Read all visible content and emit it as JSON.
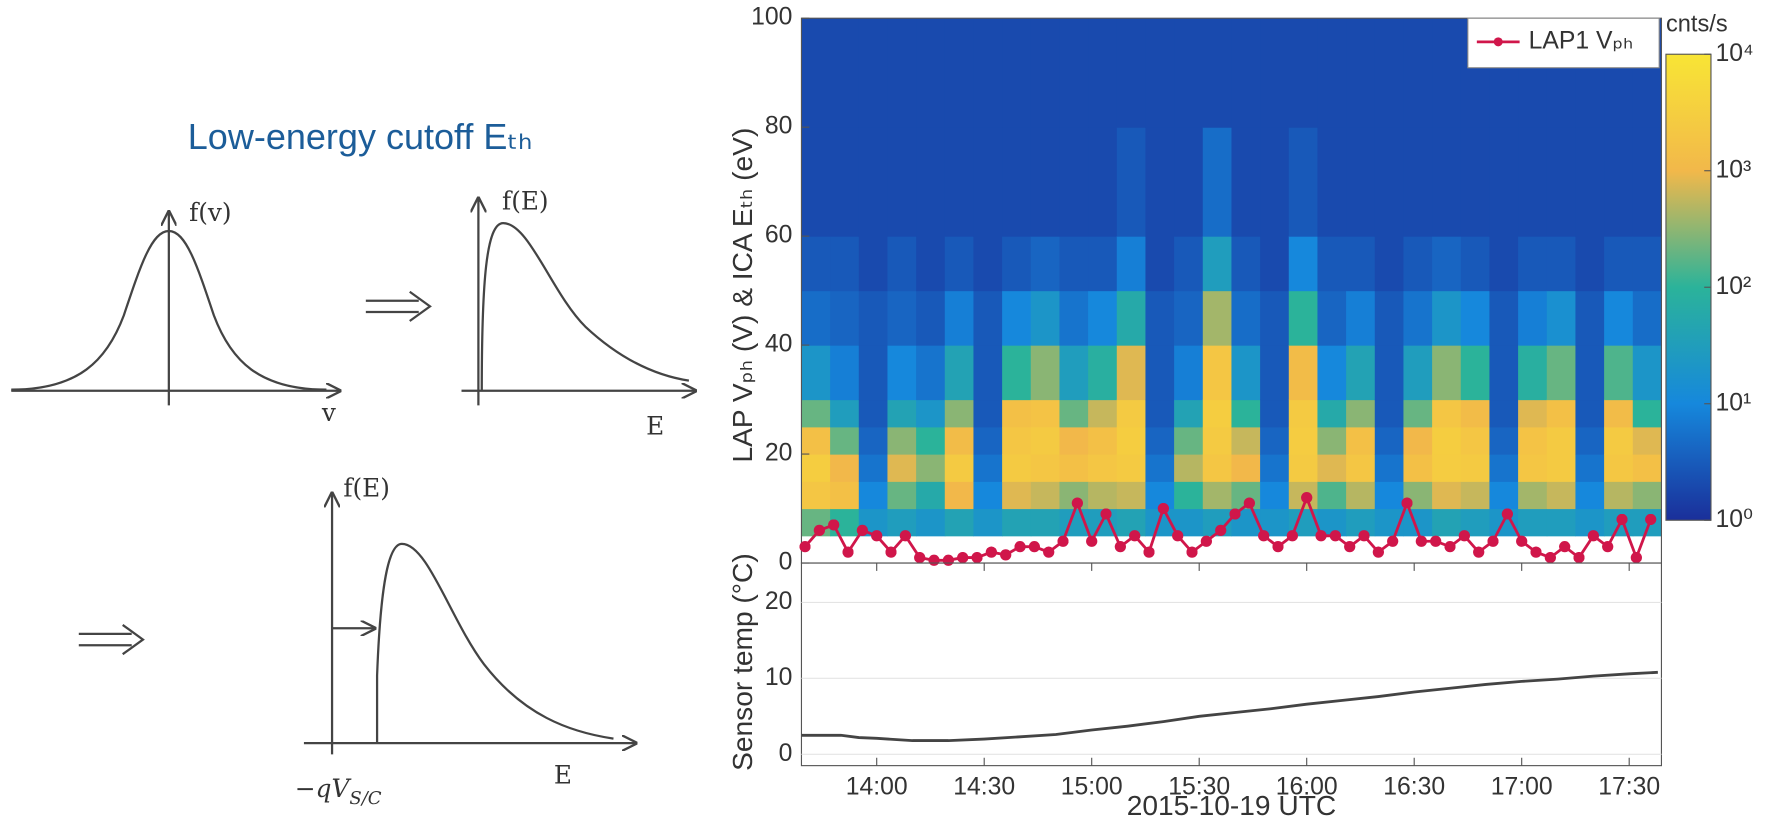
{
  "diagram": {
    "title": "Low-energy cutoff Eₜₕ",
    "panels": [
      {
        "ylabel": "f(v)",
        "xlabel": "v"
      },
      {
        "ylabel": "f(E)",
        "xlabel": "E"
      },
      {
        "ylabel": "f(E)",
        "xlabel": "E",
        "marker": "−qV",
        "marker_subscript": "S/C"
      }
    ]
  },
  "chart_data": [
    {
      "type": "heatmap",
      "ylabel": "LAP Vₚₕ (V) & ICA Eₜₕ (eV)",
      "xlim": [
        "13:39",
        "17:39"
      ],
      "ylim": [
        0,
        100
      ],
      "yticks": [
        0,
        20,
        40,
        60,
        80,
        100
      ],
      "time_bins": [
        "13:39",
        "13:47",
        "13:55",
        "14:03",
        "14:11",
        "14:19",
        "14:27",
        "14:35",
        "14:43",
        "14:51",
        "14:59",
        "15:07",
        "15:15",
        "15:23",
        "15:31",
        "15:39",
        "15:47",
        "15:55",
        "16:03",
        "16:11",
        "16:19",
        "16:27",
        "16:35",
        "16:43",
        "16:51",
        "16:59",
        "17:07",
        "17:15",
        "17:23",
        "17:31",
        "17:39"
      ],
      "energy_bins": [
        5,
        10,
        15,
        20,
        25,
        30,
        40,
        50,
        60,
        80,
        100
      ],
      "values": [
        [
          200,
          2000,
          3000,
          1500,
          200,
          20,
          5,
          3,
          2,
          2
        ],
        [
          100,
          1500,
          1000,
          200,
          30,
          8,
          4,
          3,
          2,
          2
        ],
        [
          20,
          10,
          6,
          4,
          3,
          3,
          3,
          2,
          2,
          2
        ],
        [
          30,
          200,
          800,
          300,
          40,
          10,
          4,
          3,
          2,
          2
        ],
        [
          20,
          60,
          300,
          100,
          20,
          6,
          3,
          2,
          2,
          2
        ],
        [
          40,
          1000,
          2500,
          1200,
          300,
          40,
          8,
          3,
          2,
          2
        ],
        [
          20,
          10,
          6,
          4,
          3,
          3,
          3,
          2,
          2,
          2
        ],
        [
          40,
          800,
          2500,
          2000,
          1500,
          100,
          10,
          3,
          2,
          2
        ],
        [
          40,
          600,
          2000,
          2500,
          1800,
          300,
          20,
          4,
          2,
          2
        ],
        [
          30,
          300,
          1500,
          1000,
          200,
          30,
          6,
          3,
          2,
          2
        ],
        [
          30,
          500,
          2000,
          1500,
          600,
          80,
          10,
          3,
          2,
          2
        ],
        [
          40,
          600,
          2500,
          3000,
          2500,
          800,
          60,
          8,
          3,
          2
        ],
        [
          20,
          10,
          6,
          4,
          3,
          3,
          3,
          2,
          2,
          2
        ],
        [
          20,
          100,
          500,
          200,
          40,
          8,
          4,
          3,
          2,
          2
        ],
        [
          30,
          400,
          2000,
          2500,
          3000,
          2000,
          400,
          30,
          5,
          2
        ],
        [
          20,
          200,
          1000,
          600,
          100,
          20,
          5,
          3,
          2,
          2
        ],
        [
          20,
          10,
          6,
          4,
          3,
          3,
          3,
          2,
          2,
          2
        ],
        [
          30,
          600,
          2500,
          2800,
          2500,
          1200,
          100,
          10,
          3,
          2
        ],
        [
          20,
          150,
          800,
          300,
          60,
          10,
          4,
          3,
          2,
          2
        ],
        [
          30,
          500,
          2000,
          1500,
          300,
          40,
          8,
          3,
          2,
          2
        ],
        [
          20,
          10,
          6,
          4,
          3,
          3,
          3,
          2,
          2,
          2
        ],
        [
          20,
          300,
          1500,
          1000,
          200,
          30,
          6,
          3,
          2,
          2
        ],
        [
          40,
          800,
          2800,
          3000,
          2000,
          300,
          20,
          4,
          2,
          2
        ],
        [
          30,
          600,
          2500,
          2000,
          1200,
          100,
          10,
          3,
          2,
          2
        ],
        [
          20,
          10,
          6,
          4,
          3,
          3,
          3,
          2,
          2,
          2
        ],
        [
          30,
          400,
          2000,
          1800,
          800,
          80,
          8,
          3,
          2,
          2
        ],
        [
          30,
          600,
          2500,
          2500,
          1500,
          200,
          15,
          3,
          2,
          2
        ],
        [
          20,
          10,
          6,
          4,
          3,
          3,
          3,
          2,
          2,
          2
        ],
        [
          30,
          500,
          2200,
          2500,
          1200,
          150,
          10,
          3,
          2,
          2
        ],
        [
          30,
          300,
          1500,
          800,
          100,
          20,
          5,
          3,
          2,
          2
        ]
      ],
      "colormap": [
        "#1a2f9a",
        "#1688dc",
        "#2bb39a",
        "#f2b84a",
        "#f8e535"
      ],
      "clim": [
        1,
        10000
      ],
      "clog": true,
      "colorbar_label": "cnts/s",
      "cticks": [
        {
          "value": 1,
          "label": "10⁰"
        },
        {
          "value": 10,
          "label": "10¹"
        },
        {
          "value": 100,
          "label": "10²"
        },
        {
          "value": 1000,
          "label": "10³"
        },
        {
          "value": 10000,
          "label": "10⁴"
        }
      ],
      "legend": "upper right",
      "series": [
        {
          "name": "LAP1 Vₚₕ",
          "color": "#d0164a",
          "x": [
            "13:40",
            "13:44",
            "13:48",
            "13:52",
            "13:56",
            "14:00",
            "14:04",
            "14:08",
            "14:12",
            "14:16",
            "14:20",
            "14:24",
            "14:28",
            "14:32",
            "14:36",
            "14:40",
            "14:44",
            "14:48",
            "14:52",
            "14:56",
            "15:00",
            "15:04",
            "15:08",
            "15:12",
            "15:16",
            "15:20",
            "15:24",
            "15:28",
            "15:32",
            "15:36",
            "15:40",
            "15:44",
            "15:48",
            "15:52",
            "15:56",
            "16:00",
            "16:04",
            "16:08",
            "16:12",
            "16:16",
            "16:20",
            "16:24",
            "16:28",
            "16:32",
            "16:36",
            "16:40",
            "16:44",
            "16:48",
            "16:52",
            "16:56",
            "17:00",
            "17:04",
            "17:08",
            "17:12",
            "17:16",
            "17:20",
            "17:24",
            "17:28",
            "17:32",
            "17:36"
          ],
          "values": [
            3,
            6,
            7,
            2,
            6,
            5,
            2,
            5,
            1,
            0.5,
            0.5,
            1,
            1,
            2,
            1.5,
            3,
            3,
            2,
            4,
            11,
            4,
            9,
            3,
            5,
            2,
            10,
            5,
            2,
            4,
            6,
            9,
            11,
            5,
            3,
            5,
            12,
            5,
            5,
            3,
            5,
            2,
            4,
            11,
            4,
            4,
            3,
            5,
            2,
            4,
            9,
            4,
            2,
            1,
            3,
            1,
            5,
            3,
            8,
            1,
            8
          ]
        }
      ]
    },
    {
      "type": "line",
      "ylabel": "Sensor temp (°C)",
      "xlabel": "2015-10-19 UTC",
      "xlim": [
        "13:39",
        "17:39"
      ],
      "xticks": [
        "14:00",
        "14:30",
        "15:00",
        "15:30",
        "16:00",
        "16:30",
        "17:00",
        "17:30"
      ],
      "ylim": [
        -1.5,
        25.2
      ],
      "yticks": [
        0,
        10,
        20
      ],
      "series": [
        {
          "color": "#444444",
          "x": [
            "13:39",
            "13:50",
            "13:55",
            "14:00",
            "14:10",
            "14:20",
            "14:30",
            "14:40",
            "14:50",
            "15:00",
            "15:10",
            "15:20",
            "15:30",
            "15:40",
            "15:50",
            "16:00",
            "16:10",
            "16:20",
            "16:30",
            "16:40",
            "16:50",
            "17:00",
            "17:10",
            "17:20",
            "17:30",
            "17:38"
          ],
          "values": [
            2.5,
            2.5,
            2.2,
            2.1,
            1.8,
            1.8,
            2.0,
            2.3,
            2.6,
            3.2,
            3.7,
            4.3,
            5.0,
            5.5,
            6.0,
            6.6,
            7.1,
            7.6,
            8.2,
            8.7,
            9.2,
            9.6,
            9.9,
            10.3,
            10.6,
            10.8
          ]
        }
      ]
    }
  ]
}
